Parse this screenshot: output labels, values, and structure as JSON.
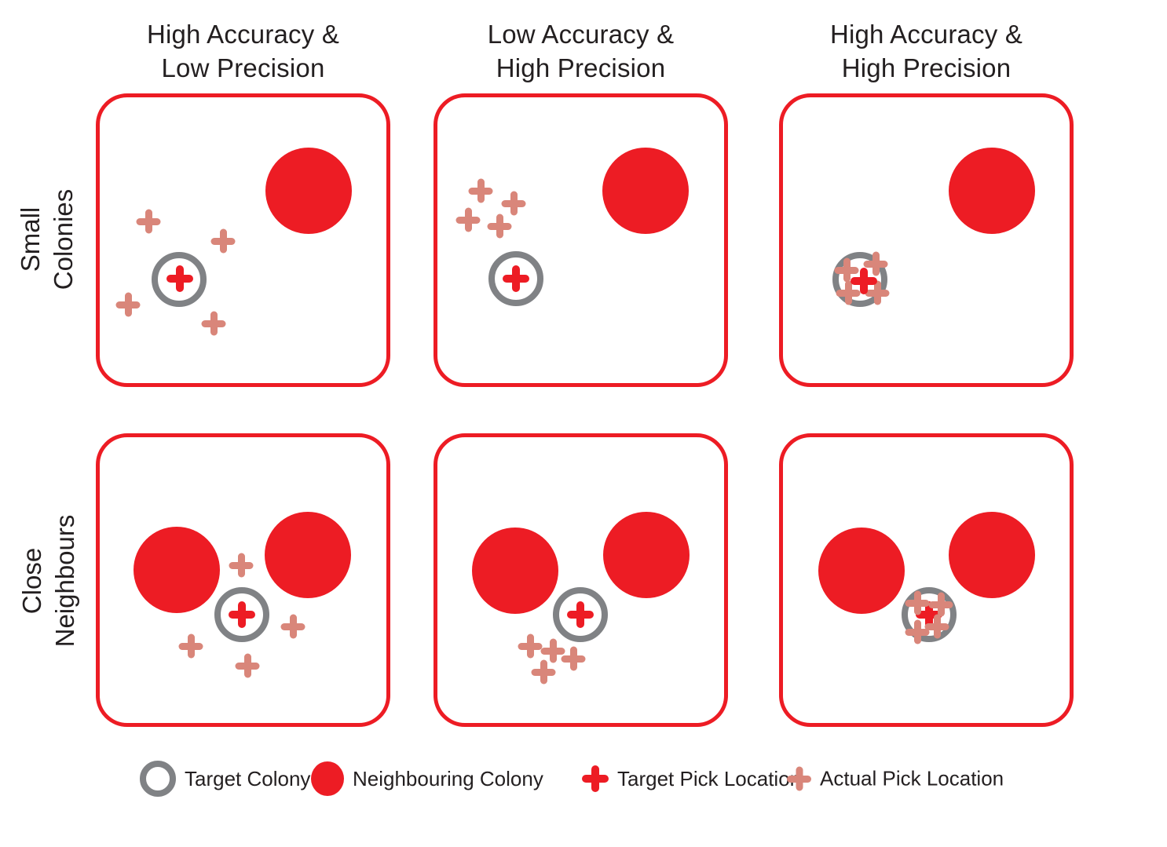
{
  "colors": {
    "red": "#ED1C24",
    "salmon": "#D9867A",
    "gray": "#808285",
    "text": "#231F20"
  },
  "columns": [
    {
      "line1": "High Accuracy &",
      "line2": "Low Precision"
    },
    {
      "line1": "Low Accuracy &",
      "line2": "High Precision"
    },
    {
      "line1": "High Accuracy &",
      "line2": "High Precision"
    }
  ],
  "rows": [
    {
      "line1": "Small",
      "line2": "Colonies"
    },
    {
      "line1": "Close",
      "line2": "Neighbours"
    }
  ],
  "panels": [
    {
      "row": "Small Colonies",
      "column": "High Accuracy & Low Precision",
      "neighbour_colonies": [
        [
          271,
          124
        ]
      ],
      "target_ring": [
        106,
        237
      ],
      "target_plus": [
        107,
        236
      ],
      "actual_pluses": [
        [
          67,
          163
        ],
        [
          162,
          188
        ],
        [
          41,
          269
        ],
        [
          150,
          293
        ]
      ],
      "plus_order": "target-on-top"
    },
    {
      "row": "Small Colonies",
      "column": "Low Accuracy & High Precision",
      "neighbour_colonies": [
        [
          270,
          124
        ]
      ],
      "target_ring": [
        105,
        236
      ],
      "target_plus": [
        105,
        236
      ],
      "actual_pluses": [
        [
          60,
          124
        ],
        [
          102,
          140
        ],
        [
          44,
          161
        ],
        [
          84,
          169
        ]
      ],
      "plus_order": "target-on-top"
    },
    {
      "row": "Small Colonies",
      "column": "High Accuracy & High Precision",
      "neighbour_colonies": [
        [
          271,
          124
        ]
      ],
      "target_ring": [
        103,
        237
      ],
      "target_plus": [
        108,
        239
      ],
      "actual_pluses": [
        [
          86,
          225
        ],
        [
          123,
          217
        ],
        [
          88,
          254
        ],
        [
          125,
          254
        ]
      ],
      "plus_order": "target-on-top"
    },
    {
      "row": "Close Neighbours",
      "column": "High Accuracy & Low Precision",
      "neighbour_colonies": [
        [
          103,
          174
        ],
        [
          270,
          155
        ]
      ],
      "target_ring": [
        186,
        231
      ],
      "target_plus": [
        186,
        231
      ],
      "actual_pluses": [
        [
          185,
          168
        ],
        [
          251,
          246
        ],
        [
          121,
          271
        ],
        [
          193,
          296
        ]
      ],
      "plus_order": "target-on-top"
    },
    {
      "row": "Close Neighbours",
      "column": "Low Accuracy & High Precision",
      "neighbour_colonies": [
        [
          104,
          175
        ],
        [
          271,
          155
        ]
      ],
      "target_ring": [
        187,
        231
      ],
      "target_plus": [
        187,
        231
      ],
      "actual_pluses": [
        [
          123,
          271
        ],
        [
          152,
          277
        ],
        [
          178,
          287
        ],
        [
          140,
          304
        ]
      ],
      "plus_order": "target-on-top"
    },
    {
      "row": "Close Neighbours",
      "column": "High Accuracy & High Precision",
      "neighbour_colonies": [
        [
          105,
          175
        ],
        [
          271,
          155
        ]
      ],
      "target_ring": [
        191,
        231
      ],
      "target_plus": [
        191,
        231
      ],
      "actual_pluses": [
        [
          176,
          216
        ],
        [
          206,
          218
        ],
        [
          176,
          253
        ],
        [
          201,
          246
        ]
      ],
      "plus_order": "actual-on-top"
    }
  ],
  "legend": {
    "items": [
      {
        "icon": "target-colony-ring-icon",
        "label": "Target Colony"
      },
      {
        "icon": "neighbouring-colony-dot-icon",
        "label": "Neighbouring Colony"
      },
      {
        "icon": "target-pick-plus-icon",
        "label": "Target Pick Location"
      },
      {
        "icon": "actual-pick-plus-icon",
        "label": "Actual Pick Location"
      }
    ]
  }
}
